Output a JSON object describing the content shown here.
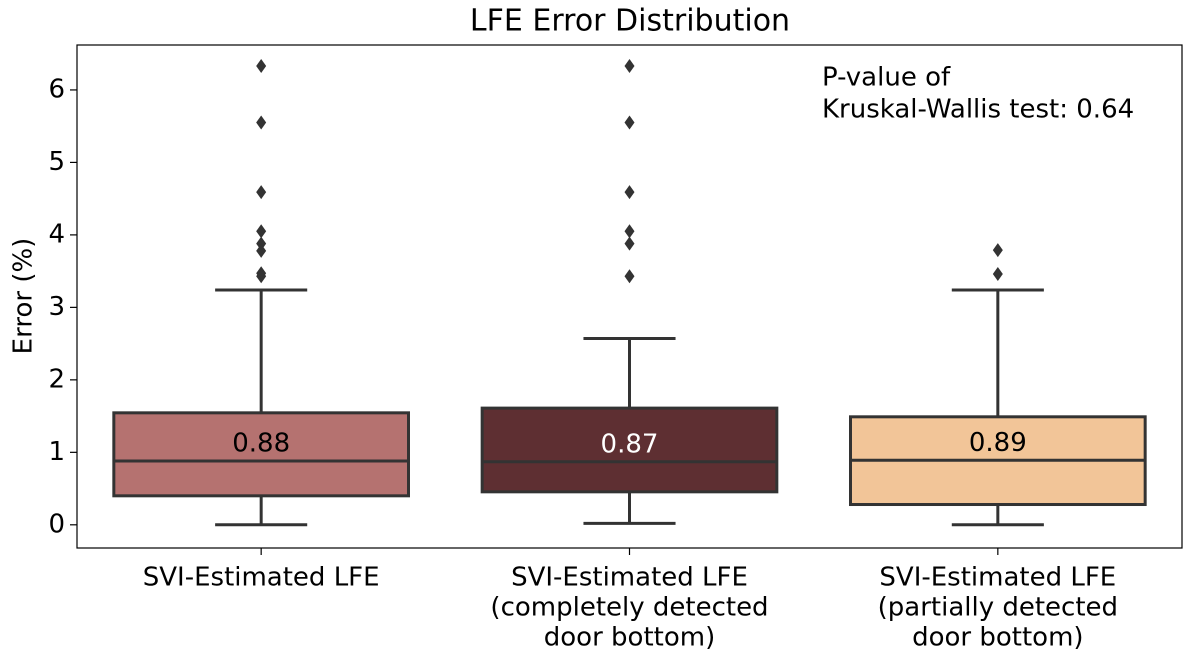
{
  "chart_data": {
    "type": "box",
    "title": "LFE Error Distribution",
    "y_label": "Error (%)",
    "categories": [
      [
        "SVI-Estimated LFE"
      ],
      [
        "SVI-Estimated LFE",
        "(completely detected",
        "door bottom)"
      ],
      [
        "SVI-Estimated LFE",
        "(partially detected",
        "door bottom)"
      ]
    ],
    "boxes": [
      {
        "min": 0,
        "q1": 0.4,
        "median": 0.88,
        "q3": 1.545,
        "max": 3.24,
        "outliers": [
          6.33,
          5.55,
          4.59,
          4.05,
          3.88,
          3.78,
          3.47,
          3.43
        ],
        "color": "#b57270",
        "median_label_color": "#000000"
      },
      {
        "min": 0.02,
        "q1": 0.455,
        "median": 0.87,
        "q3": 1.61,
        "max": 2.57,
        "outliers": [
          6.33,
          5.55,
          4.59,
          4.05,
          3.88,
          3.43
        ],
        "color": "#5e2f32",
        "median_label_color": "#ffffff"
      },
      {
        "min": 0,
        "q1": 0.28,
        "median": 0.89,
        "q3": 1.49,
        "max": 3.24,
        "outliers": [
          3.79,
          3.46
        ],
        "color": "#f2c598",
        "median_label_color": "#000000"
      }
    ],
    "annotation": [
      "P-value of",
      "Kruskal-Wallis test: 0.64"
    ],
    "ylim": [
      -0.32,
      6.62
    ],
    "yticks": [
      0,
      1,
      2,
      3,
      4,
      5,
      6
    ]
  }
}
